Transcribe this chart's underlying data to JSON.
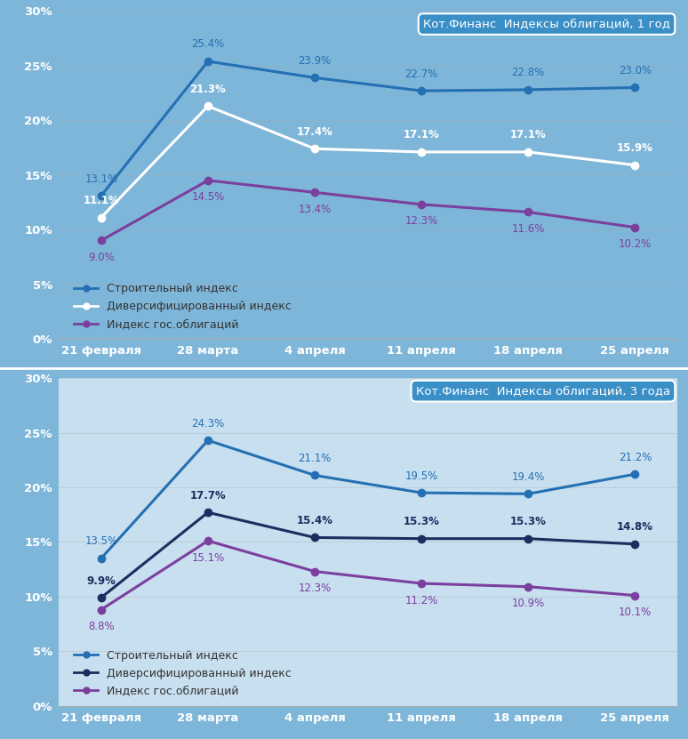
{
  "x_labels": [
    "21 февраля",
    "28 марта",
    "4 апреля",
    "11 апреля",
    "18 апреля",
    "25 апреля"
  ],
  "charts": [
    {
      "title_bold": "Кот.Финанс",
      "title_normal": "  Индексы облигаций, 1 год",
      "bg_color": "#7EB6D9",
      "series": [
        {
          "name": "Строительный индекс",
          "color": "#2470B3",
          "label_bold": false,
          "label_above": true,
          "values": [
            13.1,
            25.4,
            23.9,
            22.7,
            22.8,
            23.0
          ]
        },
        {
          "name": "Диверсифицированный индекс",
          "color": "#FFFFFF",
          "label_bold": true,
          "label_above": true,
          "values": [
            11.1,
            21.3,
            17.4,
            17.1,
            17.1,
            15.9
          ]
        },
        {
          "name": "Индекс гос.облигаций",
          "color": "#7B3F9E",
          "label_bold": false,
          "label_above": false,
          "values": [
            9.0,
            14.5,
            13.4,
            12.3,
            11.6,
            10.2
          ]
        }
      ]
    },
    {
      "title_bold": "Кот.Финанс",
      "title_normal": "  Индексы облигаций, 3 года",
      "bg_color": "#C8DFF0",
      "series": [
        {
          "name": "Строительный индекс",
          "color": "#2470B3",
          "label_bold": false,
          "label_above": true,
          "values": [
            13.5,
            24.3,
            21.1,
            19.5,
            19.4,
            21.2
          ]
        },
        {
          "name": "Диверсифицированный индекс",
          "color": "#1C2D5E",
          "label_bold": true,
          "label_above": true,
          "values": [
            9.9,
            17.7,
            15.4,
            15.3,
            15.3,
            14.8
          ]
        },
        {
          "name": "Индекс гос.облигаций",
          "color": "#7B3F9E",
          "label_bold": false,
          "label_above": false,
          "values": [
            8.8,
            15.1,
            12.3,
            11.2,
            10.9,
            10.1
          ]
        }
      ]
    }
  ],
  "fig_bg_color": "#7EB6D9",
  "separator_color": "#FFFFFF",
  "ylim": [
    0,
    30
  ],
  "yticks": [
    0,
    5,
    10,
    15,
    20,
    25,
    30
  ],
  "line_width": 2.2,
  "marker_size": 6,
  "label_fontsize": 8.5,
  "tick_fontsize": 9.5,
  "legend_fontsize": 9,
  "title_box_color": "#3A8FC7",
  "title_box_edge": "#FFFFFF",
  "grid_color": "#AAAAAA",
  "tick_color": "#FFFFFF",
  "xtick_color": "#FFFFFF"
}
